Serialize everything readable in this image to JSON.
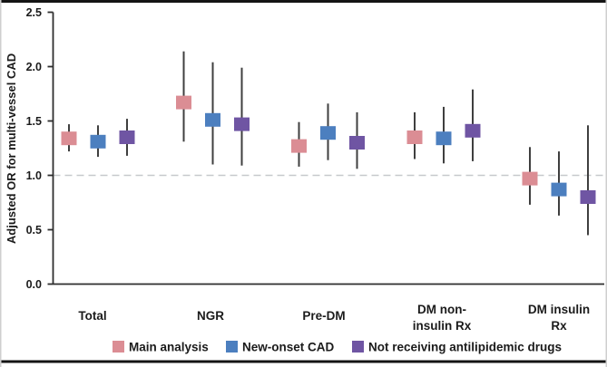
{
  "chart_data": {
    "type": "scatter",
    "variant": "grouped-point-estimates-with-ci",
    "title": "",
    "xlabel": "",
    "ylabel": "Adjusted OR for multi-vessel CAD",
    "ylim": [
      0.0,
      2.5
    ],
    "yticks": [
      "0.0",
      "0.5",
      "1.0",
      "1.5",
      "2.0",
      "2.5"
    ],
    "grid": false,
    "legend_position": "bottom",
    "reference_line": {
      "y": 1.0,
      "style": "dashed",
      "color": "#C6C9CC"
    },
    "categories": [
      "Total",
      "NGR",
      "Pre-DM",
      "DM non-\ninsulin Rx",
      "DM insulin\nRx"
    ],
    "series": [
      {
        "name": "Main analysis",
        "color": "#DB8D94",
        "values": [
          1.34,
          1.67,
          1.27,
          1.35,
          0.97
        ],
        "ci_low": [
          1.22,
          1.31,
          1.08,
          1.15,
          0.73
        ],
        "ci_high": [
          1.47,
          2.14,
          1.49,
          1.58,
          1.26
        ]
      },
      {
        "name": "New-onset CAD",
        "color": "#4C7FBF",
        "values": [
          1.31,
          1.51,
          1.39,
          1.34,
          0.87
        ],
        "ci_low": [
          1.17,
          1.1,
          1.14,
          1.11,
          0.63
        ],
        "ci_high": [
          1.46,
          2.04,
          1.66,
          1.63,
          1.22
        ]
      },
      {
        "name": "Not receiving antilipidemic drugs",
        "color": "#6F55A3",
        "values": [
          1.35,
          1.47,
          1.3,
          1.41,
          0.8
        ],
        "ci_low": [
          1.18,
          1.09,
          1.06,
          1.13,
          0.45
        ],
        "ci_high": [
          1.52,
          1.99,
          1.58,
          1.79,
          1.46
        ]
      }
    ],
    "appearance": {
      "marker_shape": "square",
      "whisker_color": "#3F3F3F",
      "axis_color": "#2E2E2E",
      "text_color": "#1B1B1B",
      "frame_top_bottom_color": "#141414",
      "frame_side_color": "#CFCFCF",
      "background": "#FFFFFF"
    }
  }
}
